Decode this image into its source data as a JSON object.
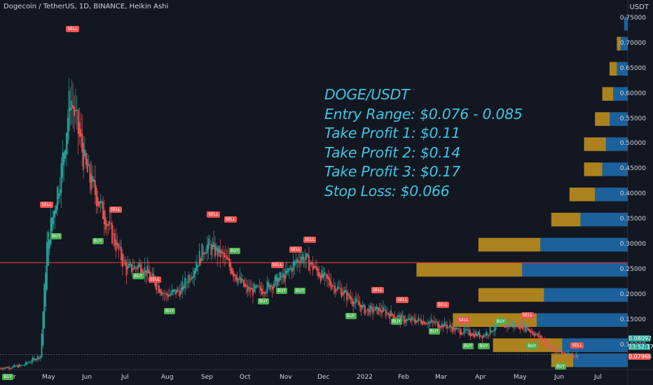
{
  "header": {
    "symbol_line": "Dogecoin / TetherUS, 1D, BINANCE, Heikin Ashi",
    "currency": "USDT"
  },
  "price_axis": {
    "ticks": [
      "0.75000",
      "0.70000",
      "0.65000",
      "0.60000",
      "0.55000",
      "0.50000",
      "0.45000",
      "0.40000",
      "0.35000",
      "0.30000",
      "0.25000",
      "0.20000",
      "0.15000",
      "0.10000"
    ],
    "current_price": "0.08092",
    "countdown": "23:52:17",
    "low_price": "0.07966"
  },
  "time_axis": {
    "ticks": [
      "Apr",
      "May",
      "Jun",
      "Jul",
      "Aug",
      "Sep",
      "Oct",
      "Nov",
      "Dec",
      "2022",
      "Feb",
      "Mar",
      "Apr",
      "May",
      "Jun",
      "Jul"
    ]
  },
  "overlay": {
    "lines": [
      "DOGE/USDT",
      "Entry Range: $0.076 - 0.085",
      "Take Profit 1: $0.11",
      "Take Profit 2: $0.14",
      "Take Profit 3: $0.17",
      "Stop Loss: $0.066"
    ]
  },
  "signals": {
    "buy_label": "BUY",
    "sell_label": "SELL"
  },
  "colors": {
    "background": "#131722",
    "up": "#26a69a",
    "down": "#ef5350",
    "overlay_text": "#3fc4de",
    "volume_blue": "#1e6fb0",
    "volume_gold": "#c8951f",
    "horizontal_line": "#e53935"
  },
  "chart_data": {
    "type": "candlestick",
    "title": "Dogecoin / TetherUS, 1D, BINANCE, Heikin Ashi",
    "ylabel": "USDT",
    "ylim": [
      0.06,
      0.76
    ],
    "horizontal_line": 0.265,
    "trend": {
      "dates": [
        "2021-03-15",
        "2021-04-01",
        "2021-04-15",
        "2021-04-20",
        "2021-05-01",
        "2021-05-08",
        "2021-05-20",
        "2021-06-01",
        "2021-06-20",
        "2021-07-01",
        "2021-07-20",
        "2021-08-01",
        "2021-08-20",
        "2021-09-01",
        "2021-09-20",
        "2021-10-01",
        "2021-10-20",
        "2021-11-01",
        "2021-11-20",
        "2021-12-01",
        "2021-12-20",
        "2022-01-01",
        "2022-01-20",
        "2022-02-01",
        "2022-02-20",
        "2022-03-01",
        "2022-03-20",
        "2022-04-01",
        "2022-04-20",
        "2022-05-01",
        "2022-05-15",
        "2022-06-01"
      ],
      "close": [
        0.055,
        0.06,
        0.08,
        0.3,
        0.45,
        0.6,
        0.45,
        0.37,
        0.25,
        0.26,
        0.2,
        0.21,
        0.3,
        0.28,
        0.21,
        0.21,
        0.24,
        0.28,
        0.23,
        0.21,
        0.17,
        0.17,
        0.15,
        0.15,
        0.14,
        0.13,
        0.12,
        0.14,
        0.14,
        0.12,
        0.088,
        0.08
      ]
    },
    "volume_profile": [
      {
        "price": 0.74,
        "up": 0.02,
        "down": 0.0
      },
      {
        "price": 0.7,
        "up": 0.04,
        "down": 0.02
      },
      {
        "price": 0.65,
        "up": 0.06,
        "down": 0.04
      },
      {
        "price": 0.6,
        "up": 0.08,
        "down": 0.06
      },
      {
        "price": 0.55,
        "up": 0.1,
        "down": 0.08
      },
      {
        "price": 0.5,
        "up": 0.12,
        "down": 0.12
      },
      {
        "price": 0.45,
        "up": 0.14,
        "down": 0.1
      },
      {
        "price": 0.4,
        "up": 0.18,
        "down": 0.14
      },
      {
        "price": 0.35,
        "up": 0.26,
        "down": 0.16
      },
      {
        "price": 0.3,
        "up": 0.48,
        "down": 0.34
      },
      {
        "price": 0.25,
        "up": 0.58,
        "down": 0.58
      },
      {
        "price": 0.2,
        "up": 0.46,
        "down": 0.36
      },
      {
        "price": 0.15,
        "up": 0.5,
        "down": 0.46
      },
      {
        "price": 0.1,
        "up": 0.36,
        "down": 0.38
      },
      {
        "price": 0.07,
        "up": 0.3,
        "down": 0.12
      }
    ],
    "signal_marks": [
      {
        "type": "BUY",
        "date": "2021-03-20",
        "price": 0.05
      },
      {
        "type": "SELL",
        "date": "2021-05-08",
        "price": 0.72
      },
      {
        "type": "SELL",
        "date": "2021-04-18",
        "price": 0.37
      },
      {
        "type": "BUY",
        "date": "2021-04-26",
        "price": 0.33
      },
      {
        "type": "BUY",
        "date": "2021-05-28",
        "price": 0.32
      },
      {
        "type": "SELL",
        "date": "2021-06-10",
        "price": 0.36
      },
      {
        "type": "BUY",
        "date": "2021-06-28",
        "price": 0.25
      },
      {
        "type": "SELL",
        "date": "2021-07-10",
        "price": 0.22
      },
      {
        "type": "BUY",
        "date": "2021-07-22",
        "price": 0.18
      },
      {
        "type": "SELL",
        "date": "2021-08-24",
        "price": 0.35
      },
      {
        "type": "SELL",
        "date": "2021-09-06",
        "price": 0.34
      },
      {
        "type": "BUY",
        "date": "2021-09-10",
        "price": 0.3
      },
      {
        "type": "BUY",
        "date": "2021-10-02",
        "price": 0.2
      },
      {
        "type": "SELL",
        "date": "2021-10-12",
        "price": 0.25
      },
      {
        "type": "BUY",
        "date": "2021-10-16",
        "price": 0.22
      },
      {
        "type": "SELL",
        "date": "2021-10-26",
        "price": 0.28
      },
      {
        "type": "BUY",
        "date": "2021-10-30",
        "price": 0.22
      },
      {
        "type": "SELL",
        "date": "2021-11-06",
        "price": 0.3
      },
      {
        "type": "BUY",
        "date": "2021-12-08",
        "price": 0.17
      },
      {
        "type": "SELL",
        "date": "2021-12-28",
        "price": 0.2
      },
      {
        "type": "BUY",
        "date": "2022-01-12",
        "price": 0.16
      },
      {
        "type": "SELL",
        "date": "2022-01-16",
        "price": 0.18
      },
      {
        "type": "BUY",
        "date": "2022-02-10",
        "price": 0.14
      },
      {
        "type": "SELL",
        "date": "2022-02-16",
        "price": 0.17
      },
      {
        "type": "SELL",
        "date": "2022-03-04",
        "price": 0.14
      },
      {
        "type": "BUY",
        "date": "2022-03-08",
        "price": 0.11
      },
      {
        "type": "BUY",
        "date": "2022-03-20",
        "price": 0.11
      },
      {
        "type": "BUY",
        "date": "2022-04-02",
        "price": 0.16
      },
      {
        "type": "SELL",
        "date": "2022-04-22",
        "price": 0.15
      },
      {
        "type": "BUY",
        "date": "2022-04-26",
        "price": 0.11
      },
      {
        "type": "BUY",
        "date": "2022-05-18",
        "price": 0.07
      },
      {
        "type": "SELL",
        "date": "2022-05-30",
        "price": 0.09
      }
    ]
  }
}
